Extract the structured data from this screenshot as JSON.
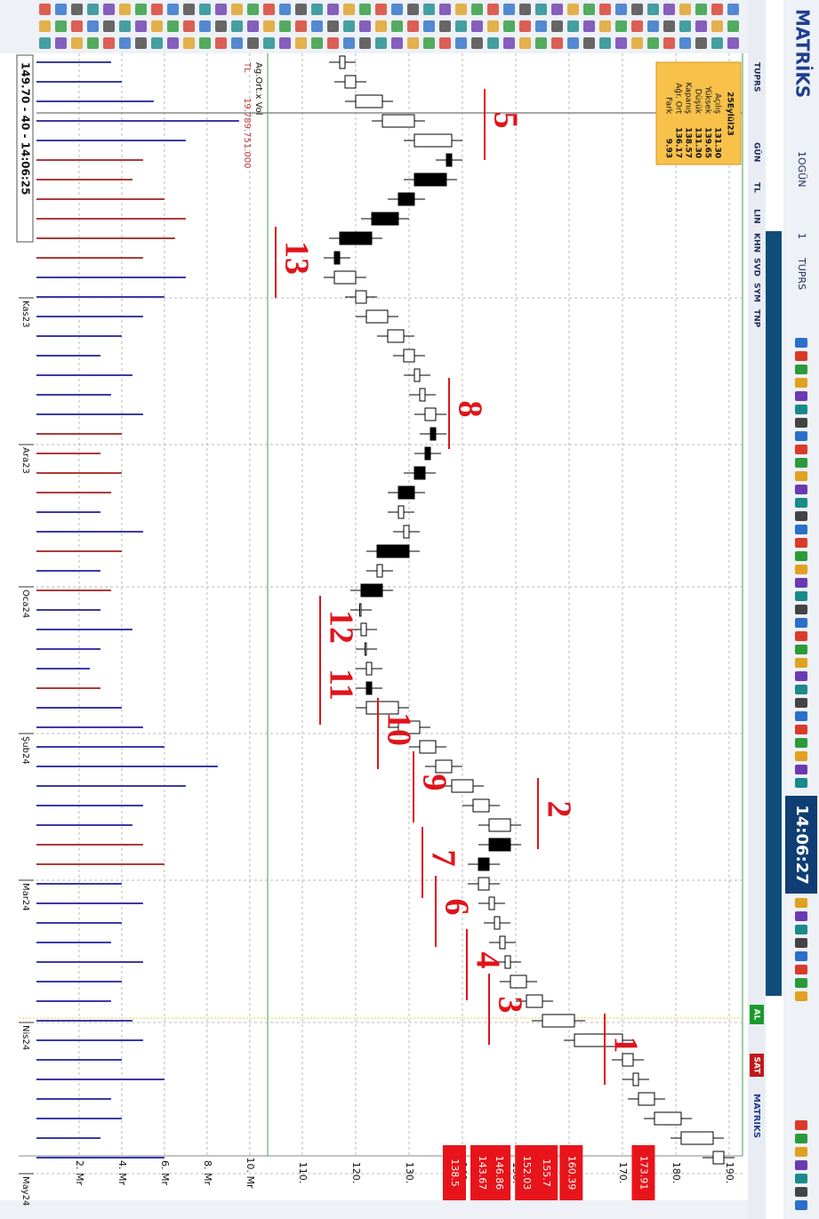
{
  "app": {
    "logo": "MATRİKS",
    "period": "1OGÜN",
    "count": "1",
    "symbol": "TUPRS",
    "clock": "14:06:27",
    "buy": "AL",
    "sell": "SAT",
    "brand": "MATRIKS"
  },
  "chart_tabs": [
    "TUPRS",
    "GÜN",
    "TL",
    "LIN",
    "KHN",
    "SVD",
    "SYM",
    "TNP"
  ],
  "chart_data": {
    "type": "candlestick",
    "open": [
      117,
      118,
      120,
      125,
      131,
      138,
      137,
      131,
      128,
      123,
      117,
      116,
      120,
      122,
      126,
      129,
      131,
      132,
      133,
      135,
      134,
      133,
      131,
      128,
      129,
      130,
      124,
      125,
      121,
      121,
      122,
      122,
      123,
      122,
      128,
      132,
      135,
      138,
      142,
      145,
      149,
      145,
      143,
      145,
      146,
      147,
      148,
      149,
      152,
      155,
      161,
      170,
      172,
      173,
      176,
      181,
      187
    ],
    "high": [
      120,
      122,
      127,
      133,
      140,
      140,
      139,
      133,
      130,
      125,
      119,
      122,
      124,
      128,
      131,
      133,
      134,
      135,
      137,
      137,
      136,
      135,
      133,
      131,
      132,
      132,
      127,
      127,
      123,
      124,
      124,
      125,
      125,
      130,
      134,
      137,
      140,
      144,
      147,
      151,
      151,
      147,
      147,
      148,
      149,
      150,
      151,
      154,
      157,
      163,
      172,
      174,
      175,
      178,
      183,
      189,
      191
    ],
    "low": [
      115,
      116,
      118,
      123,
      129,
      135,
      129,
      126,
      121,
      115,
      114,
      114,
      118,
      120,
      124,
      127,
      129,
      130,
      131,
      132,
      131,
      129,
      126,
      126,
      127,
      122,
      122,
      119,
      119,
      119,
      120,
      120,
      120,
      120,
      126,
      130,
      133,
      136,
      140,
      143,
      143,
      141,
      141,
      143,
      144,
      145,
      146,
      147,
      150,
      153,
      159,
      168,
      170,
      171,
      174,
      179,
      185
    ],
    "close": [
      118,
      120,
      125,
      131,
      138,
      137,
      131,
      128,
      123,
      117,
      116,
      120,
      122,
      126,
      129,
      131,
      132,
      133,
      135,
      134,
      133,
      131,
      128,
      129,
      130,
      124,
      125,
      121,
      121,
      122,
      122,
      123,
      122,
      128,
      132,
      135,
      138,
      142,
      145,
      149,
      145,
      143,
      145,
      146,
      147,
      148,
      149,
      152,
      155,
      161,
      170,
      172,
      173,
      176,
      181,
      187,
      189
    ],
    "ylim": [
      103.5,
      192.5
    ],
    "yticks": [
      {
        "value": 110,
        "label": "110."
      },
      {
        "value": 120,
        "label": "120."
      },
      {
        "value": 130,
        "label": "130."
      },
      {
        "value": 140,
        "label": "140."
      },
      {
        "value": 150,
        "label": "150."
      },
      {
        "value": 160,
        "label": "160."
      },
      {
        "value": 170,
        "label": "170."
      },
      {
        "value": 180,
        "label": "180."
      },
      {
        "value": 190,
        "label": "190."
      }
    ],
    "grid": true,
    "months": [
      "Kas23",
      "Ara23",
      "Oca24",
      "Şub24",
      "Mar24",
      "Nis24",
      "May24"
    ],
    "price_flags": [
      173.91,
      160.39,
      155.7,
      152.03,
      146.86,
      143.67,
      138.5
    ],
    "flag_color": "#e8141b",
    "wave_labels": [
      "1",
      "2",
      "3",
      "4",
      "5",
      "6",
      "7",
      "8",
      "9",
      "10",
      "11",
      "12",
      "13"
    ],
    "volume": {
      "values": [
        3.5,
        4,
        5.5,
        9.5,
        7,
        5,
        4.5,
        6,
        7,
        6.5,
        5,
        7,
        6,
        5,
        4,
        3,
        4.5,
        3.5,
        5,
        4,
        3,
        4,
        3.5,
        3,
        5,
        4,
        3,
        3.5,
        3,
        4.5,
        3,
        2.5,
        3,
        4,
        5,
        6,
        8.5,
        7,
        5,
        4.5,
        5,
        6,
        4,
        5,
        4,
        3.5,
        5,
        4,
        3.5,
        4.5,
        5,
        4,
        6,
        3.5,
        4,
        3,
        6
      ],
      "ylim": [
        0,
        10.8
      ],
      "yticks": [
        {
          "value": 2,
          "label": "2. Mr"
        },
        {
          "value": 4,
          "label": "4. Mr"
        },
        {
          "value": 6,
          "label": "6. Mr"
        },
        {
          "value": 8,
          "label": "8. Mr"
        },
        {
          "value": 10,
          "label": "10. Mr"
        }
      ],
      "title": "Ag.Ort.x Vol",
      "average": "19.789.751.000",
      "unit": "TL"
    },
    "info": {
      "date": "25Eylül23",
      "rows": [
        {
          "label": "Açılış",
          "value": "131.30"
        },
        {
          "label": "Yüksek",
          "value": "139.65"
        },
        {
          "label": "Düşük",
          "value": "131.30"
        },
        {
          "label": "Kapanış",
          "value": "138.57"
        },
        {
          "label": "Ağr. Ort",
          "value": "136.17"
        },
        {
          "label": "Fark",
          "value": "9.93"
        }
      ]
    },
    "status": "149.70 - 40 - 14:06:25"
  }
}
